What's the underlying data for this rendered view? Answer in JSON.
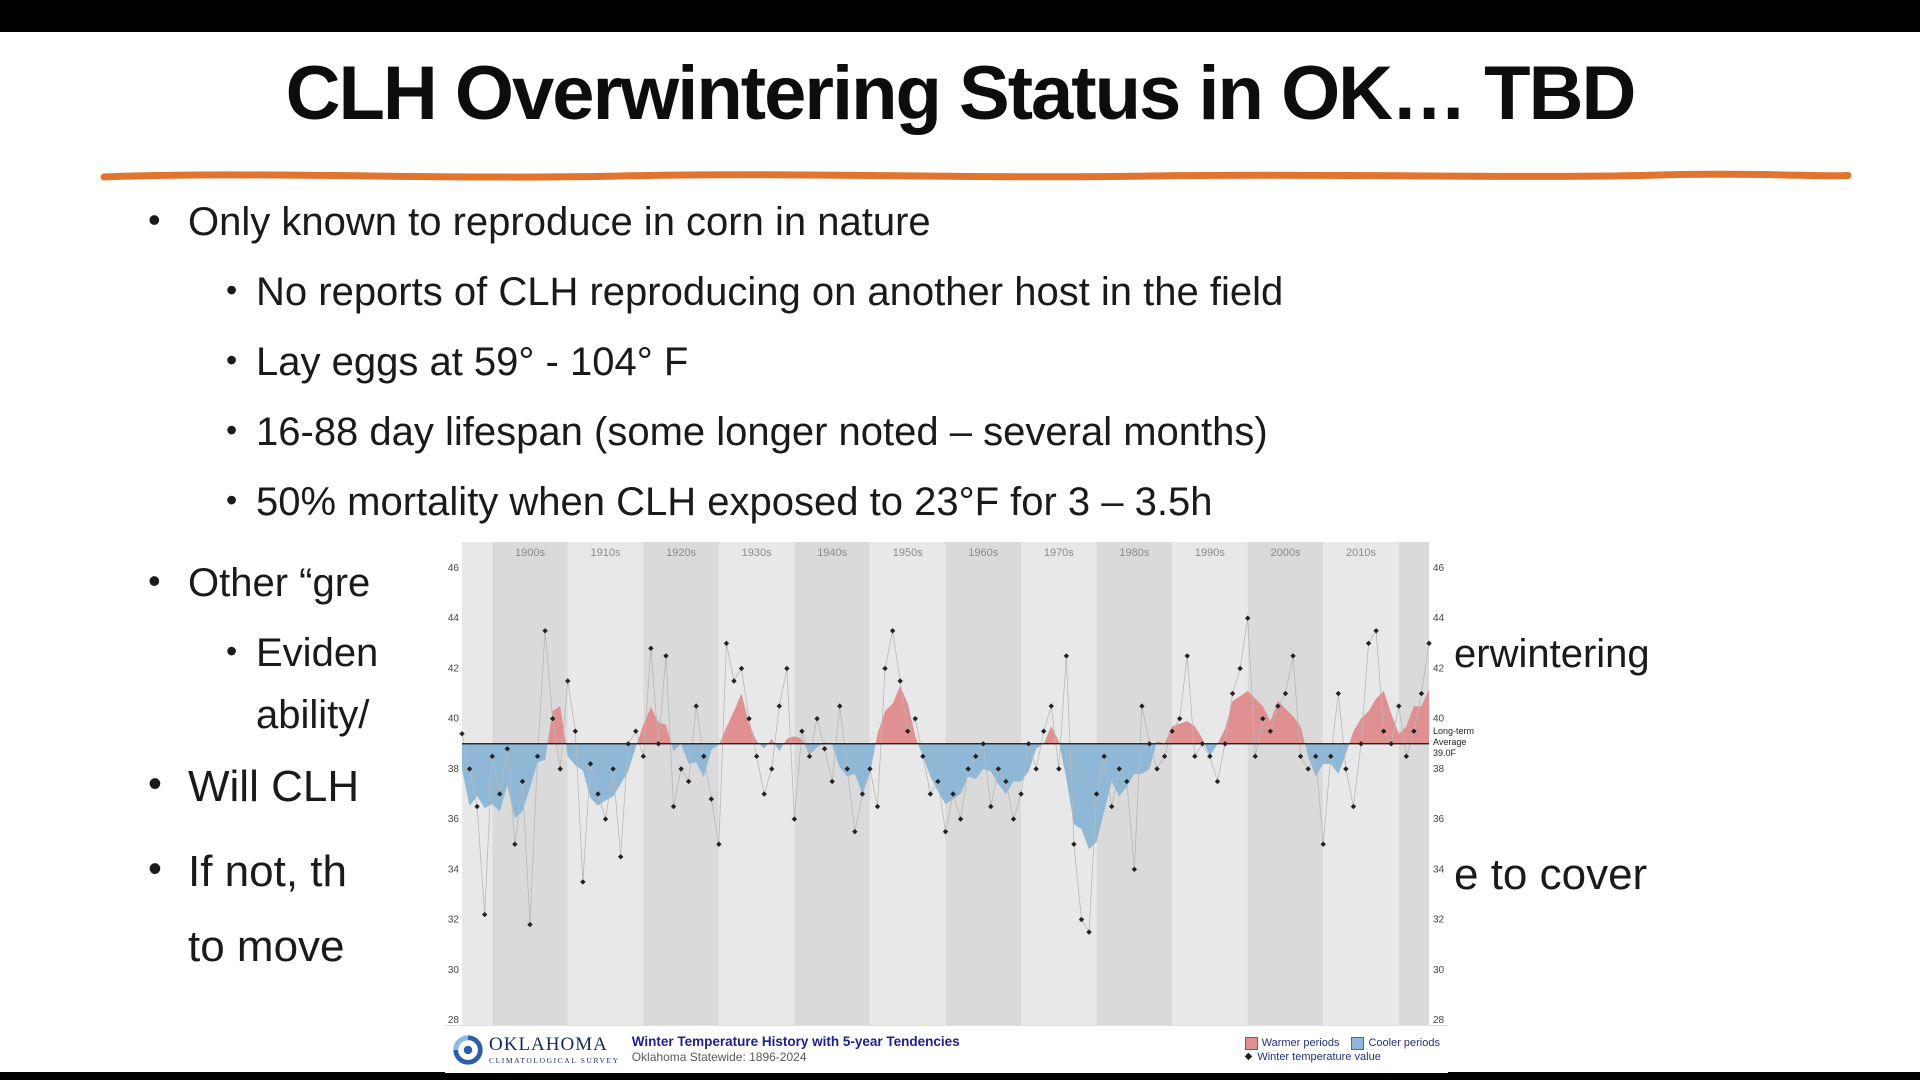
{
  "slide": {
    "title": "CLH Overwintering Status in OK… TBD",
    "accent_color": "#E2752E",
    "lines": [
      {
        "level": 1,
        "text": "Only known to reproduce in corn in nature"
      },
      {
        "level": 2,
        "text": "No reports of CLH reproducing on another host in the field"
      },
      {
        "level": 2,
        "text": "Lay eggs at 59° - 104° F"
      },
      {
        "level": 2,
        "text": "16-88 day lifespan (some longer noted – several months)"
      },
      {
        "level": 2,
        "text": "50% mortality when CLH exposed to 23°F for 3 – 3.5h"
      },
      {
        "level": 1,
        "text": "Other “gre"
      },
      {
        "level": 2,
        "text": "Eviden"
      },
      {
        "level": 2,
        "text": "ability/"
      },
      {
        "level": 1,
        "text": "Will CLH"
      },
      {
        "level": 1,
        "text": "If not, th"
      },
      {
        "level": 1,
        "text": "to move"
      }
    ],
    "fragments": [
      {
        "text": "erwintering"
      },
      {
        "text": "e to cover"
      }
    ]
  },
  "chart_data": {
    "type": "line",
    "title": "Winter Temperature History with 5-year Tendencies",
    "subtitle": "Oklahoma Statewide: 1896-2024",
    "org_name": "OKLAHOMA",
    "org_sub": "CLIMATOLOGICAL SURVEY",
    "x_range": [
      1896,
      2024
    ],
    "ylim": [
      28,
      46
    ],
    "yticks": [
      28,
      30,
      32,
      34,
      36,
      38,
      40,
      42,
      44,
      46
    ],
    "baseline": 39.0,
    "baseline_label": "Long-term\nAverage\n39.0F",
    "decade_labels": [
      "1900s",
      "1910s",
      "1920s",
      "1930s",
      "1940s",
      "1950s",
      "1960s",
      "1970s",
      "1980s",
      "1990s",
      "2000s",
      "2010s"
    ],
    "legend": [
      {
        "label": "Warmer periods",
        "color": "#e09090"
      },
      {
        "label": "Cooler periods",
        "color": "#8fb7d6"
      },
      {
        "label": "Winter temperature value",
        "color": "#222222",
        "marker": "diamond"
      }
    ],
    "band_colors": [
      "#dadada",
      "#e8e8e8"
    ],
    "values": [
      39.4,
      38.0,
      36.5,
      32.2,
      38.5,
      37.0,
      38.8,
      35.0,
      37.5,
      31.8,
      38.5,
      43.5,
      40.0,
      38.0,
      41.5,
      39.5,
      33.5,
      38.2,
      37.0,
      36.0,
      38.0,
      34.5,
      39.0,
      39.5,
      38.5,
      42.8,
      39.0,
      42.5,
      36.5,
      38.0,
      37.5,
      40.5,
      38.5,
      36.8,
      35.0,
      43.0,
      41.5,
      42.0,
      40.0,
      38.5,
      37.0,
      38.0,
      40.5,
      42.0,
      36.0,
      39.5,
      38.5,
      40.0,
      38.8,
      37.5,
      40.5,
      38.0,
      35.5,
      37.0,
      38.0,
      36.5,
      42.0,
      43.5,
      41.5,
      39.5,
      40.0,
      38.5,
      37.0,
      37.5,
      35.5,
      37.0,
      36.0,
      38.0,
      38.5,
      39.0,
      36.5,
      38.0,
      37.5,
      36.0,
      37.0,
      39.0,
      38.0,
      39.5,
      40.5,
      38.0,
      42.5,
      35.0,
      32.0,
      31.5,
      37.0,
      38.5,
      36.5,
      38.0,
      37.5,
      34.0,
      40.5,
      39.0,
      38.0,
      38.5,
      39.5,
      40.0,
      42.5,
      38.5,
      39.0,
      38.5,
      37.5,
      39.0,
      41.0,
      42.0,
      44.0,
      38.5,
      40.0,
      39.5,
      40.5,
      41.0,
      42.5,
      38.5,
      38.0,
      38.5,
      35.0,
      38.5,
      41.0,
      38.0,
      36.5,
      39.0,
      43.0,
      43.5,
      39.5,
      39.0,
      40.5,
      38.5,
      39.5,
      41.0,
      43.0
    ]
  }
}
